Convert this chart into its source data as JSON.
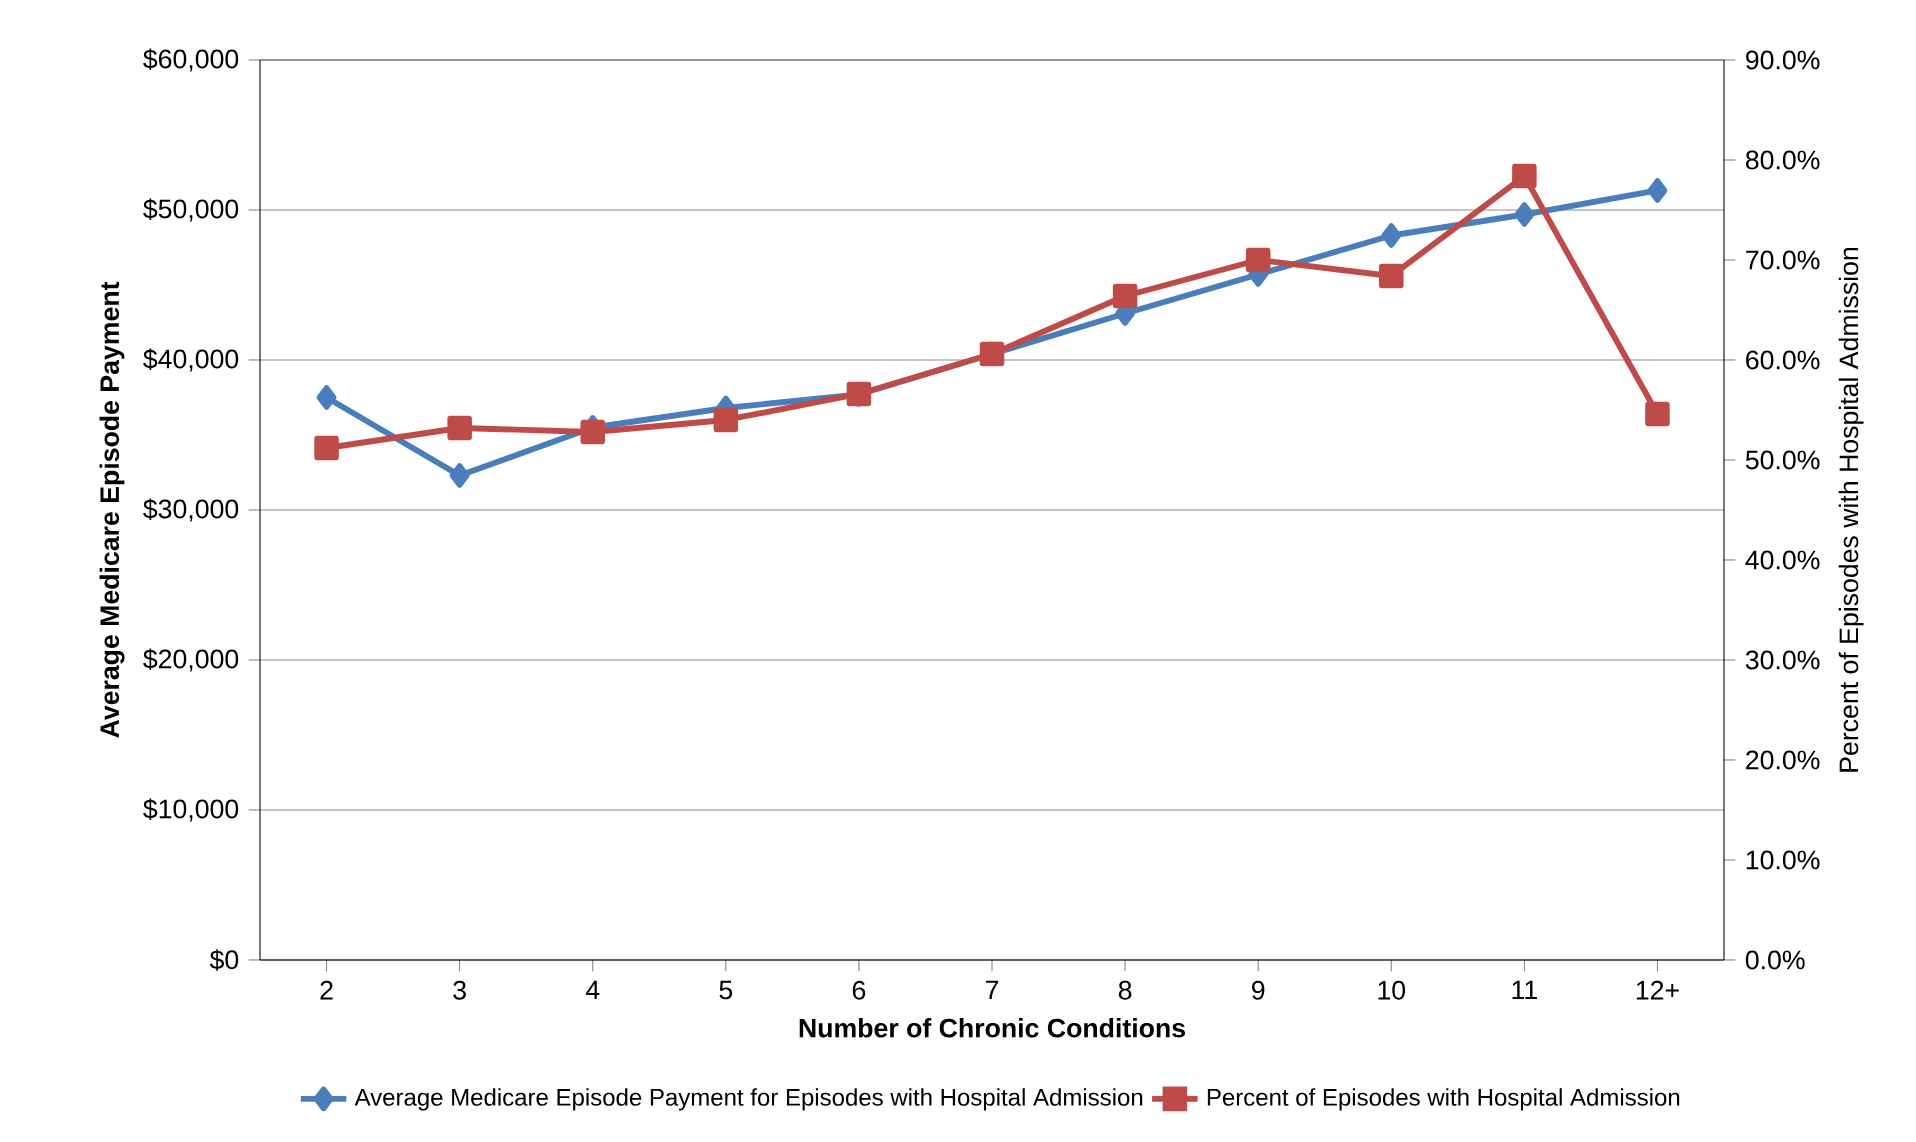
{
  "chart_data": {
    "type": "line",
    "xlabel": "Number of Chronic Conditions",
    "ylabel": "Average Medicare  Episode Payment",
    "y2label": "Percent of Episodes  with Hospital Admission",
    "categories": [
      "2",
      "3",
      "4",
      "5",
      "6",
      "7",
      "8",
      "9",
      "10",
      "11",
      "12+"
    ],
    "series": [
      {
        "name": "Average Medicare Episode Payment for Episodes with Hospital Admission",
        "color": "#4a7ebb",
        "marker": "diamond",
        "values": [
          37500,
          32300,
          35500,
          36800,
          37700,
          40400,
          43100,
          45700,
          48300,
          49700,
          51300
        ]
      },
      {
        "name": "Percent of Episodes with Hospital Admission",
        "color": "#be4b48",
        "marker": "square",
        "axis": "y2",
        "values": [
          51.2,
          53.2,
          52.8,
          54.0,
          56.6,
          60.6,
          66.4,
          70.0,
          68.4,
          78.4,
          54.6
        ]
      }
    ],
    "ylim": [
      0,
      60000
    ],
    "yticks": [
      {
        "value": 0,
        "label": "$0"
      },
      {
        "value": 10000,
        "label": "$10,000"
      },
      {
        "value": 20000,
        "label": "$20,000"
      },
      {
        "value": 30000,
        "label": "$30,000"
      },
      {
        "value": 40000,
        "label": "$40,000"
      },
      {
        "value": 50000,
        "label": "$50,000"
      },
      {
        "value": 60000,
        "label": "$60,000"
      }
    ],
    "y2lim": [
      0,
      90
    ],
    "y2ticks": [
      {
        "value": 0,
        "label": "0.0%"
      },
      {
        "value": 10,
        "label": "10.0%"
      },
      {
        "value": 20,
        "label": "20.0%"
      },
      {
        "value": 30,
        "label": "30.0%"
      },
      {
        "value": 40,
        "label": "40.0%"
      },
      {
        "value": 50,
        "label": "50.0%"
      },
      {
        "value": 60,
        "label": "60.0%"
      },
      {
        "value": 70,
        "label": "70.0%"
      },
      {
        "value": 80,
        "label": "80.0%"
      },
      {
        "value": 90,
        "label": "90.0%"
      }
    ],
    "grid": "y",
    "legend": "bottom",
    "line_style": "solid"
  }
}
